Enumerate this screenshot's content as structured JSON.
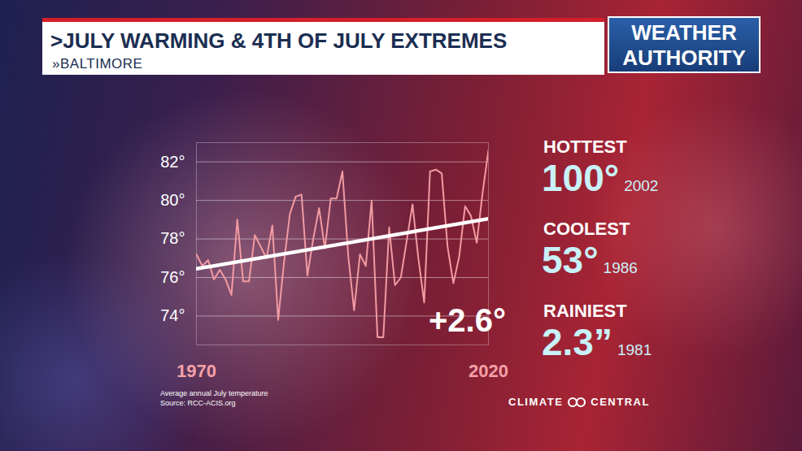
{
  "chart_data": {
    "type": "line",
    "title": ">JULY WARMING & 4TH OF JULY EXTREMES",
    "subtitle": "»BALTIMORE",
    "logo": [
      "WEATHER",
      "AUTHORITY"
    ],
    "annotation": "+2.6°",
    "caption": [
      "Average annual July temperature",
      "Source: RCC-ACIS.org"
    ],
    "credit": "CLIMATE CENTRAL",
    "extremes": [
      {
        "label": "HOTTEST",
        "value": "100°",
        "year": "2002"
      },
      {
        "label": "COOLEST",
        "value": "53°",
        "year": "1986"
      },
      {
        "label": "RAINIEST",
        "value": "2.3”",
        "year": "1981"
      }
    ],
    "x": [
      1970,
      1971,
      1972,
      1973,
      1974,
      1975,
      1976,
      1977,
      1978,
      1979,
      1980,
      1981,
      1982,
      1983,
      1984,
      1985,
      1986,
      1987,
      1988,
      1989,
      1990,
      1991,
      1992,
      1993,
      1994,
      1995,
      1996,
      1997,
      1998,
      1999,
      2000,
      2001,
      2002,
      2003,
      2004,
      2005,
      2006,
      2007,
      2008,
      2009,
      2010,
      2011,
      2012,
      2013,
      2014,
      2015,
      2016,
      2017,
      2018,
      2019,
      2020
    ],
    "series": [
      {
        "color": "#f29aa2",
        "values": [
          77.2,
          76.6,
          76.9,
          75.9,
          76.4,
          75.9,
          75.1,
          79.0,
          75.8,
          75.8,
          78.2,
          77.6,
          77.0,
          78.7,
          73.8,
          76.8,
          79.3,
          80.2,
          80.3,
          76.1,
          78.0,
          79.6,
          77.5,
          80.1,
          80.1,
          81.5,
          77.1,
          74.3,
          77.2,
          76.6,
          80.0,
          72.9,
          72.9,
          78.6,
          75.6,
          76.0,
          77.9,
          79.8,
          77.0,
          74.7,
          81.5,
          81.6,
          81.4,
          77.6,
          75.7,
          77.1,
          79.7,
          79.2,
          77.8,
          80.4,
          82.6
        ]
      },
      {
        "color": "#ffffff",
        "x": [
          1970,
          2020
        ],
        "values": [
          76.45,
          79.05
        ]
      }
    ],
    "xlim": [
      1970,
      2020
    ],
    "xticks": [
      1970,
      2020
    ],
    "ylim": [
      72.5,
      83
    ],
    "yticks": [
      {
        "value": 74,
        "label": "74°"
      },
      {
        "value": 76,
        "label": "76°"
      },
      {
        "value": 78,
        "label": "78°"
      },
      {
        "value": 80,
        "label": "80°"
      },
      {
        "value": 82,
        "label": "82°"
      }
    ],
    "grid": true
  }
}
